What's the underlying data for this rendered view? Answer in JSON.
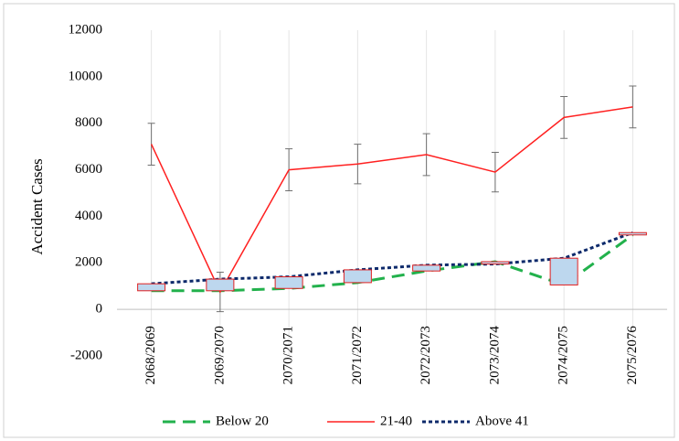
{
  "chart_data": {
    "type": "line",
    "y_label": "Accident Cases",
    "categories": [
      "2068/2069",
      "2069/2070",
      "2070/2071",
      "2071/2072",
      "2072/2073",
      "2073/2074",
      "2074/2075",
      "2075/2076"
    ],
    "series": [
      {
        "name": "Below 20",
        "color": "#22b14c",
        "dash": "dashed",
        "values": [
          800,
          800,
          900,
          1150,
          1650,
          2050,
          1050,
          3200
        ]
      },
      {
        "name": "21-40",
        "color": "#ff2020",
        "dash": "solid",
        "values": [
          7100,
          750,
          6000,
          6250,
          6650,
          5900,
          8250,
          8700
        ],
        "errors": [
          900,
          850,
          900,
          850,
          900,
          850,
          900,
          900
        ]
      },
      {
        "name": "Above 41",
        "color": "#0d2a6b",
        "dash": "dotted",
        "values": [
          1100,
          1300,
          1400,
          1700,
          1900,
          1950,
          2200,
          3300
        ]
      }
    ],
    "updown_bars": {
      "fill": "#bdd7ee",
      "stroke": "#e02020"
    },
    "ylim": [
      -2000,
      12000
    ],
    "yticks": [
      -2000,
      0,
      2000,
      4000,
      6000,
      8000,
      10000,
      12000
    ],
    "grid": "x",
    "legend": "bottom"
  }
}
